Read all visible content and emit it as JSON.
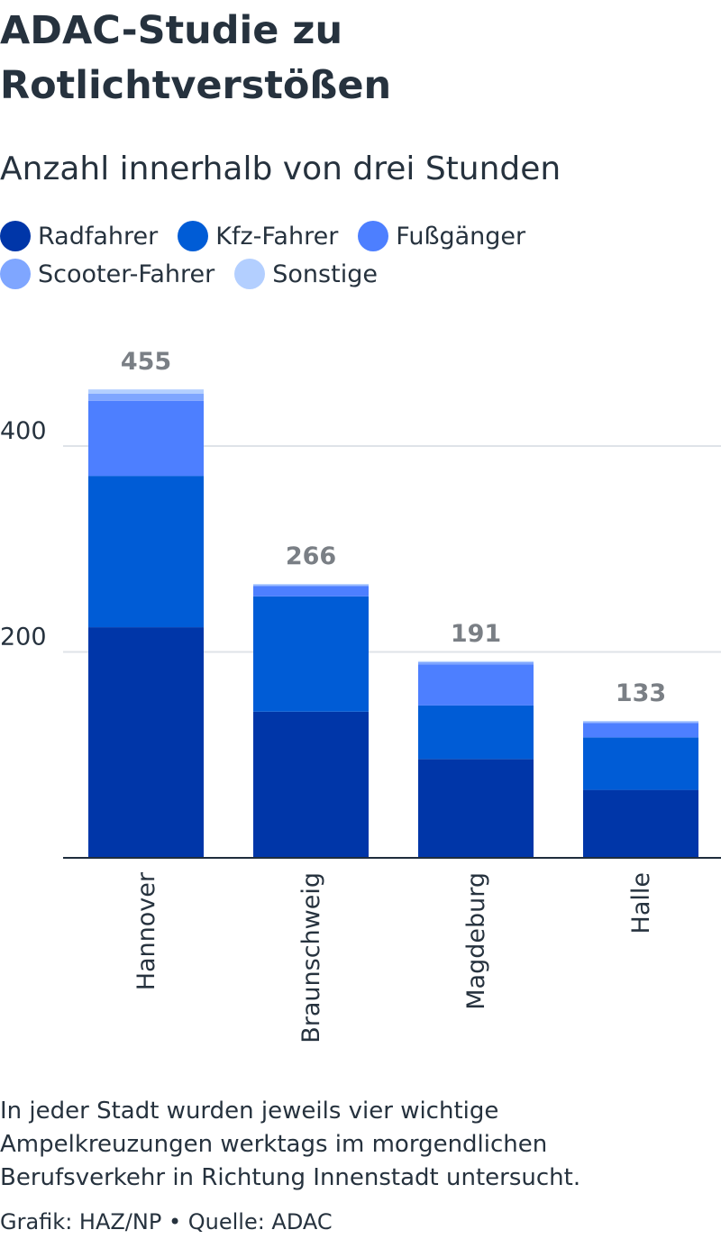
{
  "title": "ADAC-Studie zu Rotlichtverstößen",
  "subtitle": "Anzahl innerhalb von drei Stunden",
  "legend": [
    {
      "label": "Radfahrer",
      "color": "#0036a8"
    },
    {
      "label": "Kfz-Fahrer",
      "color": "#005cd6"
    },
    {
      "label": "Fußgänger",
      "color": "#4d7fff"
    },
    {
      "label": "Scooter-Fahrer",
      "color": "#7fa6ff"
    },
    {
      "label": "Sonstige",
      "color": "#b3cfff"
    }
  ],
  "chart_data": {
    "type": "bar",
    "stacked": true,
    "categories": [
      "Hannover",
      "Braunschweig",
      "Magdeburg",
      "Halle"
    ],
    "series": [
      {
        "name": "Radfahrer",
        "values": [
          224,
          142,
          96,
          66
        ]
      },
      {
        "name": "Kfz-Fahrer",
        "values": [
          147,
          112,
          52,
          51
        ]
      },
      {
        "name": "Fußgänger",
        "values": [
          73,
          10,
          40,
          14
        ]
      },
      {
        "name": "Scooter-Fahrer",
        "values": [
          7,
          1,
          2,
          1
        ]
      },
      {
        "name": "Sonstige",
        "values": [
          4,
          1,
          1,
          1
        ]
      }
    ],
    "totals": [
      455,
      266,
      191,
      133
    ],
    "yticks": [
      200,
      400
    ],
    "ylim": [
      0,
      455
    ],
    "grid": true
  },
  "note": "In jeder Stadt wurden jeweils vier wichtige Ampelkreuzungen werktags im morgendlichen Berufsverkehr in Richtung Innenstadt untersucht.",
  "credit": "Grafik: HAZ/NP • Quelle: ADAC"
}
